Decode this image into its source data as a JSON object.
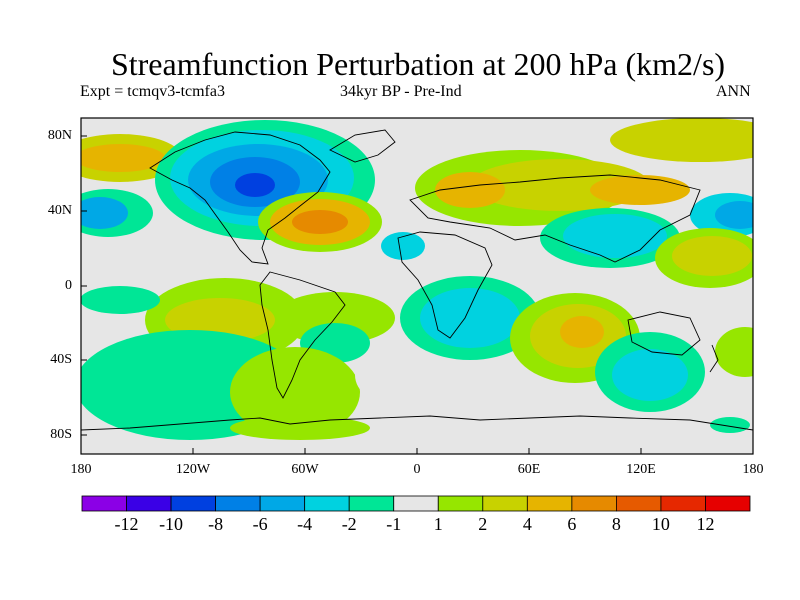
{
  "title": "Streamfunction Perturbation at 200 hPa (km2/s)",
  "subtitle_left": "Expt = tcmqv3-tcmfa3",
  "subtitle_center": "34kyr BP - Pre-Ind",
  "subtitle_right": "ANN",
  "lat_ticks": [
    "80N",
    "40N",
    "0",
    "40S",
    "80S"
  ],
  "lon_ticks": [
    "180",
    "120W",
    "60W",
    "0",
    "60E",
    "120E",
    "180"
  ],
  "colorbar": {
    "labels": [
      "-12",
      "-10",
      "-8",
      "-6",
      "-4",
      "-2",
      "-1",
      "1",
      "2",
      "4",
      "6",
      "8",
      "10",
      "12"
    ],
    "colors": [
      "#8b00e6",
      "#3a00e6",
      "#0040e0",
      "#0080e6",
      "#00a8e6",
      "#00d2e0",
      "#00e696",
      "#e6e6e6",
      "#96e600",
      "#c8d200",
      "#e6b400",
      "#e68a00",
      "#e65a00",
      "#e62800",
      "#e60000"
    ]
  },
  "map_background": "#e6e6e6"
}
